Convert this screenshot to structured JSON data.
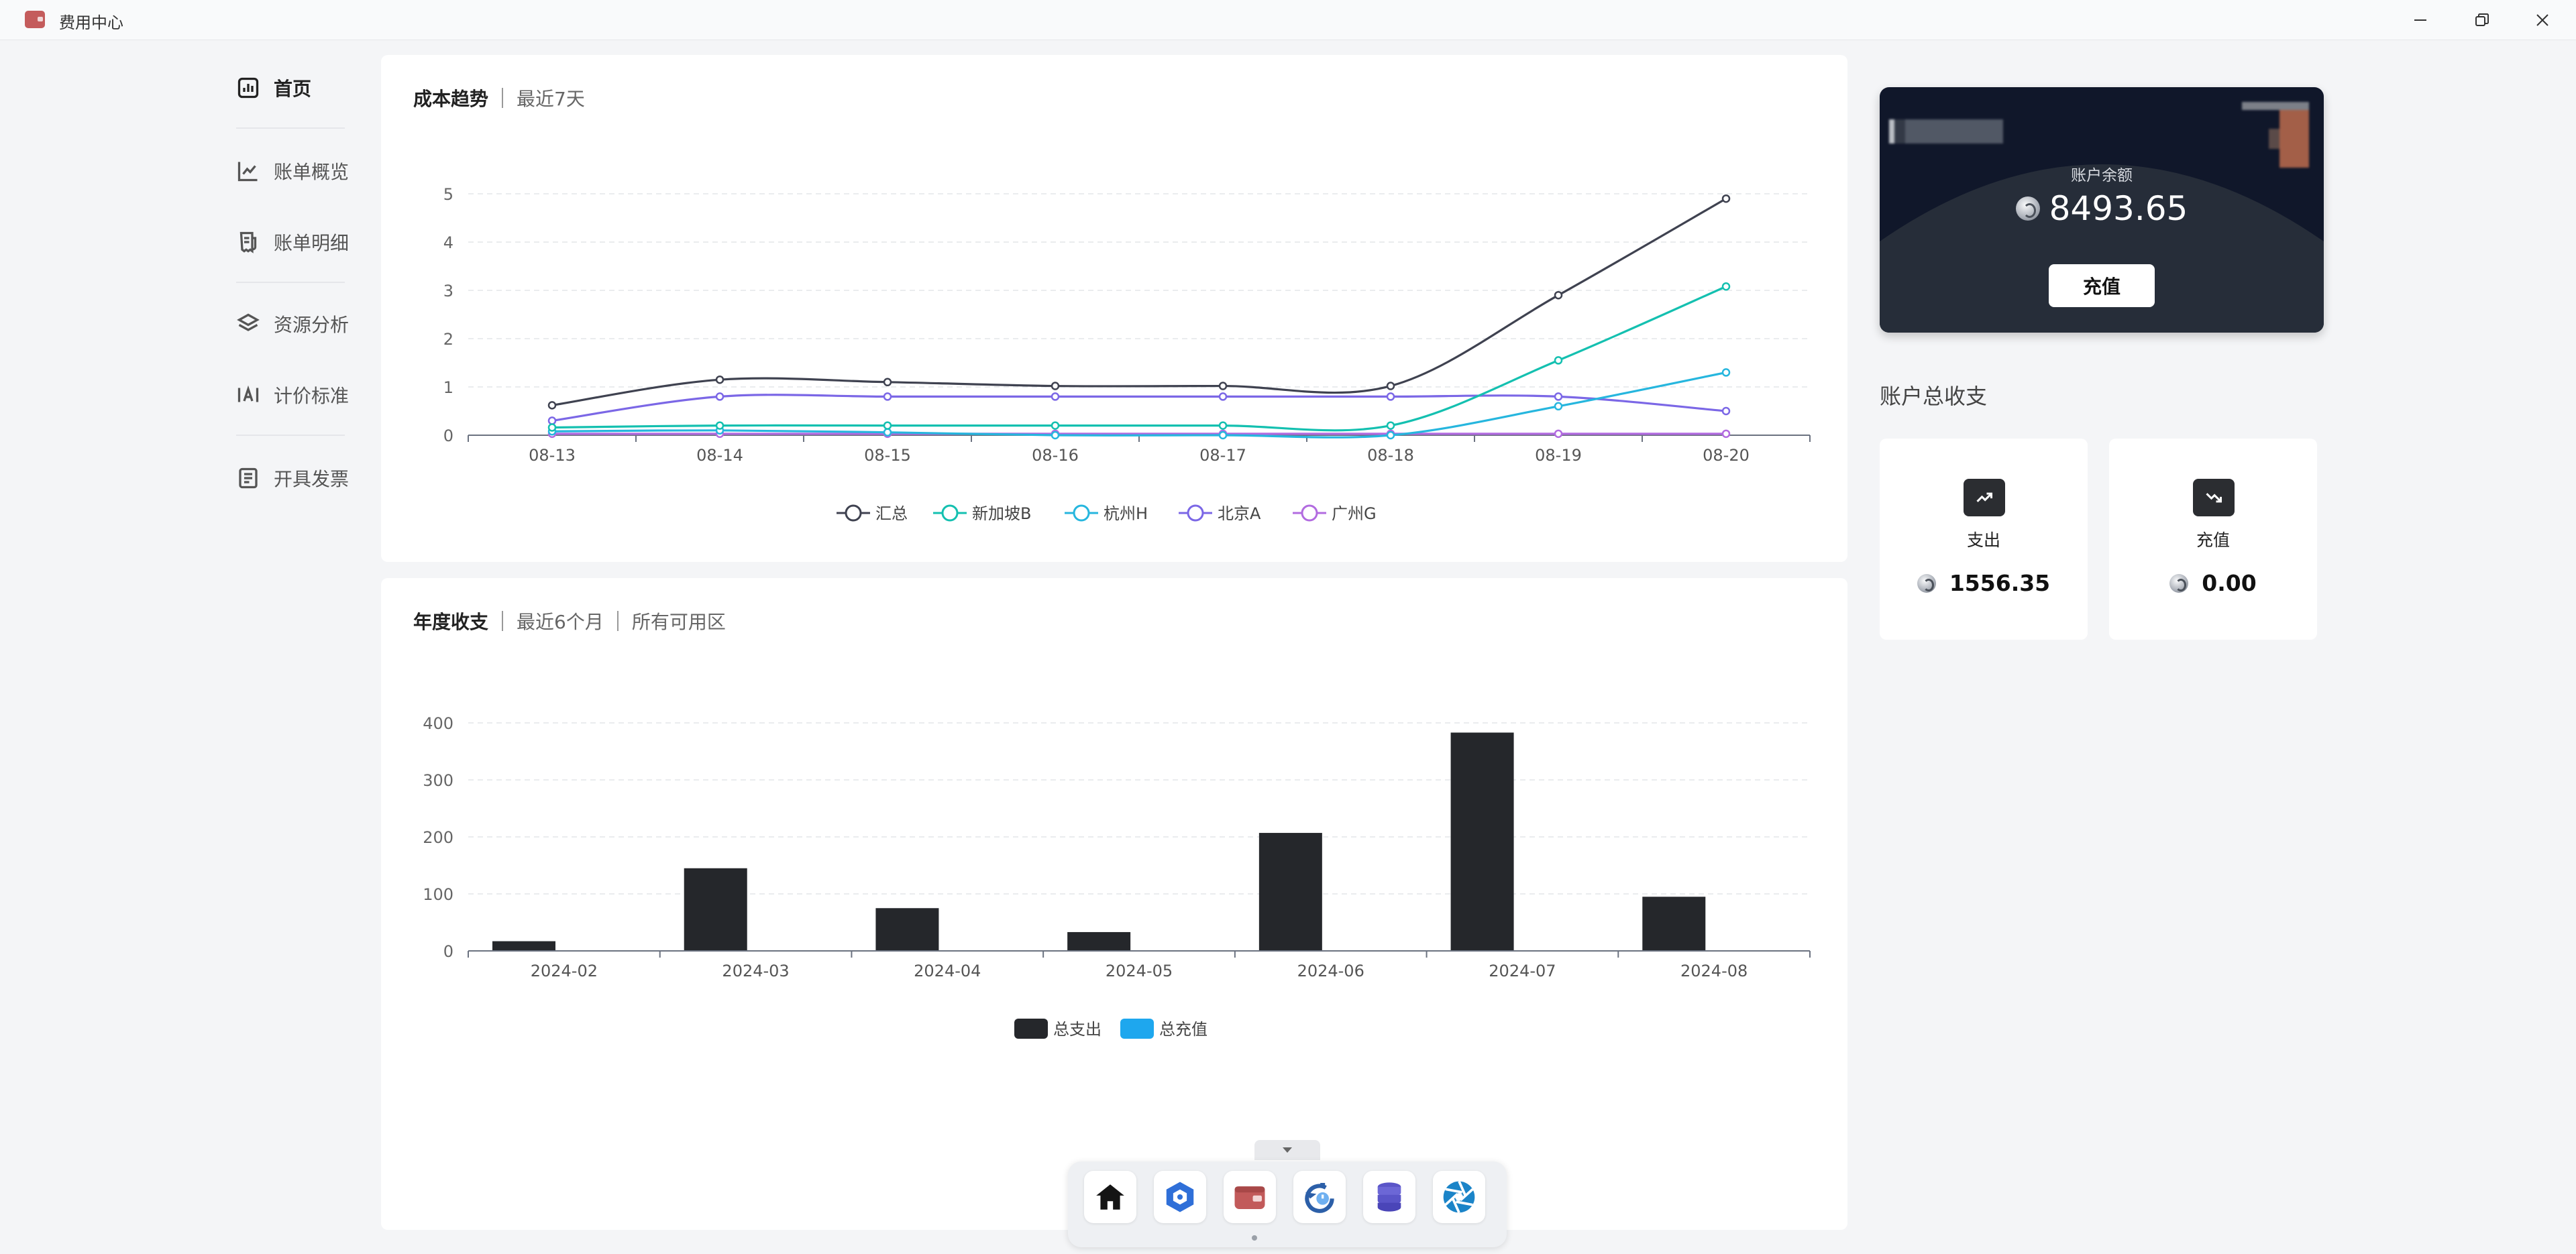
{
  "window": {
    "title": "费用中心"
  },
  "sidebar": {
    "items": [
      {
        "label": "首页",
        "icon": "chart-box-icon",
        "active": true
      },
      {
        "label": "账单概览",
        "icon": "line-chart-icon",
        "active": false
      },
      {
        "label": "账单明细",
        "icon": "receipt-icon",
        "active": false
      },
      {
        "label": "资源分析",
        "icon": "layers-icon",
        "active": false
      },
      {
        "label": "计价标准",
        "icon": "pricing-icon",
        "active": false
      },
      {
        "label": "开具发票",
        "icon": "invoice-icon",
        "active": false
      }
    ]
  },
  "cost_trend": {
    "title": "成本趋势",
    "range": "最近7天"
  },
  "annual": {
    "title": "年度收支",
    "range": "最近6个月",
    "zone": "所有可用区"
  },
  "chart_data": [
    {
      "type": "line",
      "x": [
        "08-13",
        "08-14",
        "08-15",
        "08-16",
        "08-17",
        "08-18",
        "08-19",
        "08-20"
      ],
      "ylim": [
        0,
        5
      ],
      "yticks": [
        "0",
        "1",
        "2",
        "3",
        "4",
        "5"
      ],
      "legend_position": "bottom",
      "grid": true,
      "series": [
        {
          "name": "汇总",
          "color": "#3f4250",
          "values": [
            0.62,
            1.15,
            1.1,
            1.02,
            1.02,
            1.02,
            2.9,
            4.9
          ]
        },
        {
          "name": "新加坡B",
          "color": "#14c0b0",
          "values": [
            0.16,
            0.2,
            0.2,
            0.2,
            0.2,
            0.2,
            1.55,
            3.08
          ]
        },
        {
          "name": "杭州H",
          "color": "#26b6de",
          "values": [
            0.08,
            0.1,
            0.06,
            0.0,
            0.0,
            0.0,
            0.6,
            1.3
          ]
        },
        {
          "name": "北京A",
          "color": "#7b67e6",
          "values": [
            0.3,
            0.8,
            0.8,
            0.8,
            0.8,
            0.8,
            0.8,
            0.5
          ]
        },
        {
          "name": "广州G",
          "color": "#b26be0",
          "values": [
            0.03,
            0.03,
            0.03,
            0.03,
            0.03,
            0.03,
            0.03,
            0.03
          ]
        }
      ]
    },
    {
      "type": "bar",
      "categories": [
        "2024-02",
        "2024-03",
        "2024-04",
        "2024-05",
        "2024-06",
        "2024-07",
        "2024-08"
      ],
      "ylim": [
        0,
        400
      ],
      "yticks": [
        "0",
        "100",
        "200",
        "300",
        "400"
      ],
      "legend_position": "bottom",
      "grid": true,
      "series": [
        {
          "name": "总支出",
          "color": "#25272b",
          "values": [
            17,
            145,
            75,
            33,
            207,
            383,
            95
          ]
        },
        {
          "name": "总充值",
          "color": "#1ea7ee",
          "values": [
            0,
            0,
            0,
            0,
            0,
            0,
            0
          ]
        }
      ]
    }
  ],
  "balance": {
    "label": "账户余额",
    "value": "8493.65",
    "button": "充值"
  },
  "summary": {
    "title": "账户总收支",
    "expense": {
      "label": "支出",
      "value": "1556.35",
      "icon": "trending-up-icon"
    },
    "topup": {
      "label": "充值",
      "value": "0.00",
      "icon": "trending-down-icon"
    }
  },
  "dock": {
    "apps": [
      "home-icon",
      "cube-network-icon",
      "wallet-icon",
      "refresh-timer-icon",
      "database-icon",
      "aperture-icon"
    ]
  }
}
